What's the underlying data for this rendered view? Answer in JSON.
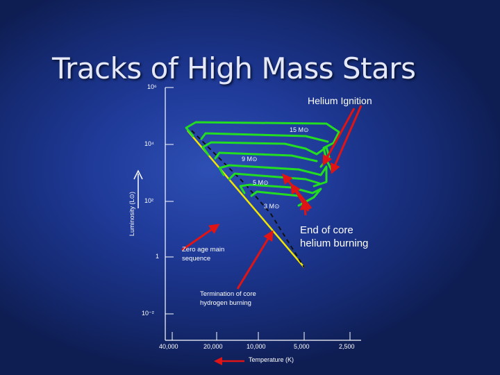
{
  "slide": {
    "title": "Tracks of High Mass Stars"
  },
  "axes": {
    "y_label": "Luminosity (L⊙)",
    "y_ticks": [
      "10⁶",
      "10⁴",
      "10²",
      "1",
      "10⁻²"
    ],
    "x_label": "Temperature (K)",
    "x_ticks": [
      "40,000",
      "20,000",
      "10,000",
      "5,000",
      "2,500"
    ]
  },
  "tracks": [
    {
      "label": "15 M⊙"
    },
    {
      "label": "9 M⊙"
    },
    {
      "label": "5 M⊙"
    },
    {
      "label": "3 M⊙"
    }
  ],
  "annotations": {
    "helium_ignition": "Helium Ignition",
    "end_helium": "End of core helium burning",
    "zams": "Zero age main sequence",
    "termination": "Termination of core hydrogen burning"
  },
  "colors": {
    "background": "#1f3a98",
    "tracks": "#22dd22",
    "arrows": "#e01414",
    "main_sequence": "#f2e600",
    "axis": "#ffffff"
  }
}
